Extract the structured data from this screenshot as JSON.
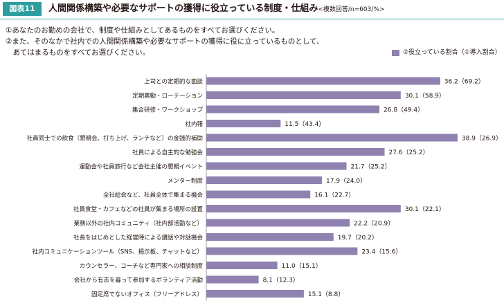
{
  "header": {
    "figure_label": "図表11",
    "title": "人間関係構築や必要なサポートの獲得に役立っている制度・仕組み",
    "note": "<複数回答/n=603/%>"
  },
  "questions": [
    "①あなたのお勤めの会社で、制度や仕組みとしてあるものをすべてお選びください。",
    "②また、そのなかで社内での人間関係構築や必要なサポートの獲得に役に立っているものとして、",
    "　あてはまるものをすべてお選びください。"
  ],
  "legend": {
    "label": "②役立っている割合（①導入割合）",
    "color": "#8f81b0"
  },
  "chart_data": {
    "type": "bar",
    "orientation": "horizontal",
    "categories": [
      "上司との定期的な面談",
      "定期異動・ローテーション",
      "集合研修・ワークショップ",
      "社内報",
      "社員同士での飲食（懇親会、打ち上げ、ランチなど）の金銭的補助",
      "社員による自主的な勉強会",
      "運動会や社員旅行など会社主催の懇親イベント",
      "メンター制度",
      "全社総会など、社員全体で集まる機会",
      "社員食堂・カフェなどの社員が集まる場所の設置",
      "業務以外の社内コミュニティ（社内部活動など）",
      "社長をはじめとした経営陣による講話や対話機会",
      "社内コミュニケーションツール（SNS、掲示板、チャットなど）",
      "カウンセラー、コーチなど専門家への相談制度",
      "会社から有志を募って参加するボランティア活動",
      "固定席でないオフィス（フリーアドレス）"
    ],
    "values": [
      36.2,
      30.1,
      26.8,
      11.5,
      38.9,
      27.6,
      21.7,
      17.9,
      16.1,
      30.1,
      22.2,
      19.7,
      23.4,
      11.0,
      8.1,
      15.1
    ],
    "introduction_rates": [
      69.2,
      58.9,
      49.4,
      43.4,
      26.9,
      25.2,
      25.2,
      24.0,
      22.7,
      22.1,
      20.9,
      20.2,
      15.6,
      15.1,
      12.3,
      8.8
    ],
    "data_labels": [
      "36.2（69.2）",
      "30.1（58.9）",
      "26.8（49.4）",
      "11.5（43.4）",
      "38.9（26.9）",
      "27.6（25.2）",
      "21.7（25.2）",
      "17.9（24.0）",
      "16.1（22.7）",
      "30.1（22.1）",
      "22.2（20.9）",
      "19.7（20.2）",
      "23.4（15.6）",
      "11.0（15.1）",
      "8.1（12.3）",
      "15.1（8.8）"
    ],
    "bar_color": "#8f81b0",
    "xlim": [
      0,
      40
    ],
    "grid": false,
    "legend_position": "top-right"
  }
}
